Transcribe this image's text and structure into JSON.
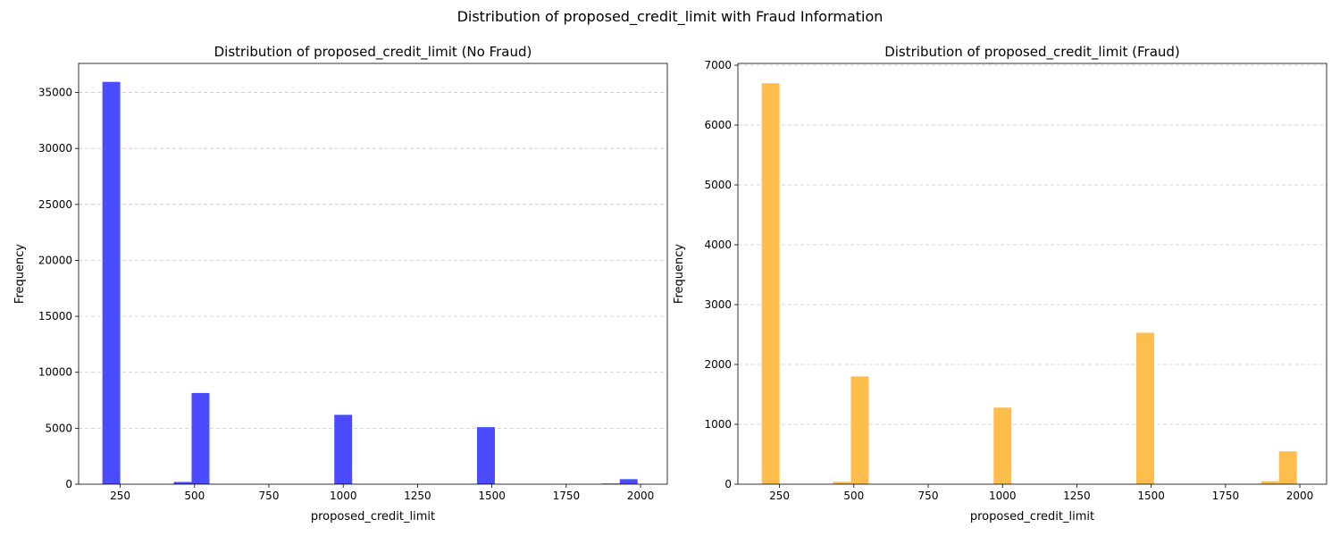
{
  "figure": {
    "suptitle": "Distribution of proposed_credit_limit with Fraud Information"
  },
  "chart_data": [
    {
      "type": "bar",
      "title": "Distribution of proposed_credit_limit (No Fraud)",
      "xlabel": "proposed_credit_limit",
      "ylabel": "Frequency",
      "xlim": [
        110,
        2090
      ],
      "ylim": [
        0,
        37600
      ],
      "xticks": [
        250,
        500,
        750,
        1000,
        1250,
        1500,
        1750,
        2000
      ],
      "yticks": [
        0,
        5000,
        10000,
        15000,
        20000,
        25000,
        30000,
        35000
      ],
      "grid": "y-dashed",
      "color": "#4b4bff",
      "bin_width": 60,
      "bins": [
        {
          "x0": 190,
          "x1": 250,
          "value": 35950
        },
        {
          "x0": 430,
          "x1": 490,
          "value": 200
        },
        {
          "x0": 490,
          "x1": 550,
          "value": 8150
        },
        {
          "x0": 970,
          "x1": 1030,
          "value": 6200
        },
        {
          "x0": 1450,
          "x1": 1510,
          "value": 5100
        },
        {
          "x0": 1870,
          "x1": 1930,
          "value": 60
        },
        {
          "x0": 1930,
          "x1": 1990,
          "value": 450
        }
      ]
    },
    {
      "type": "bar",
      "title": "Distribution of proposed_credit_limit (Fraud)",
      "xlabel": "proposed_credit_limit",
      "ylabel": "Frequency",
      "xlim": [
        110,
        2090
      ],
      "ylim": [
        0,
        7030
      ],
      "xticks": [
        250,
        500,
        750,
        1000,
        1250,
        1500,
        1750,
        2000
      ],
      "yticks": [
        0,
        1000,
        2000,
        3000,
        4000,
        5000,
        6000,
        7000
      ],
      "grid": "y-dashed",
      "color": "#ffbe4b",
      "bin_width": 60,
      "bins": [
        {
          "x0": 190,
          "x1": 250,
          "value": 6700
        },
        {
          "x0": 430,
          "x1": 490,
          "value": 40
        },
        {
          "x0": 490,
          "x1": 550,
          "value": 1800
        },
        {
          "x0": 970,
          "x1": 1030,
          "value": 1280
        },
        {
          "x0": 1450,
          "x1": 1510,
          "value": 2530
        },
        {
          "x0": 1870,
          "x1": 1930,
          "value": 50
        },
        {
          "x0": 1930,
          "x1": 1990,
          "value": 550
        }
      ]
    }
  ]
}
